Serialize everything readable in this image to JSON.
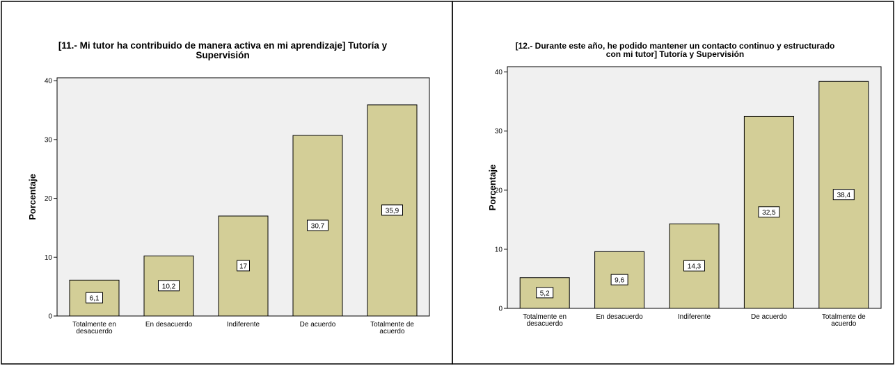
{
  "chart_data": [
    {
      "type": "bar",
      "title": [
        "[11.- Mi tutor ha contribuido de manera activa en mi aprendizaje] Tutoría y",
        "Supervisión"
      ],
      "xlabel": "",
      "ylabel": "Porcentaje",
      "categories": [
        [
          "Totalmente en",
          "desacuerdo"
        ],
        [
          "En desacuerdo"
        ],
        [
          "Indiferente"
        ],
        [
          "De acuerdo"
        ],
        [
          "Totalmente de",
          "acuerdo"
        ]
      ],
      "values": [
        6.1,
        10.2,
        17,
        30.7,
        35.9
      ],
      "data_labels": [
        "6,1",
        "10,2",
        "17",
        "30,7",
        "35,9"
      ],
      "ylim": [
        0,
        40.5
      ],
      "yticks": [
        0,
        10,
        20,
        30,
        40
      ],
      "ytick_labels": [
        "0",
        "10",
        "20",
        "30",
        "40"
      ],
      "bar_color": "#d3ce97",
      "plot_background": "#f0f0f0",
      "grid": false,
      "legend": "none"
    },
    {
      "type": "bar",
      "title": [
        "[12.- Durante este año, he podido mantener un contacto continuo y estructurado",
        "con mi tutor] Tutoría y Supervisión"
      ],
      "xlabel": "",
      "ylabel": "Porcentaje",
      "categories": [
        [
          "Totalmente en",
          "desacuerdo"
        ],
        [
          "En desacuerdo"
        ],
        [
          "Indiferente"
        ],
        [
          "De acuerdo"
        ],
        [
          "Totalmente de",
          "acuerdo"
        ]
      ],
      "values": [
        5.2,
        9.6,
        14.3,
        32.5,
        38.4
      ],
      "data_labels": [
        "5,2",
        "9,6",
        "14,3",
        "32,5",
        "38,4"
      ],
      "ylim": [
        0,
        40.9
      ],
      "yticks": [
        0,
        10,
        20,
        30,
        40
      ],
      "ytick_labels": [
        "0",
        "10",
        "20",
        "30",
        "40"
      ],
      "bar_color": "#d3ce97",
      "plot_background": "#f0f0f0",
      "grid": false,
      "legend": "none"
    }
  ]
}
